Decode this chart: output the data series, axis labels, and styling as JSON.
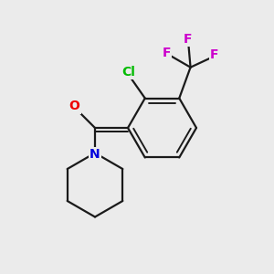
{
  "background_color": "#ebebeb",
  "bond_color": "#1a1a1a",
  "atom_colors": {
    "Cl": "#00bb00",
    "F": "#cc00cc",
    "O": "#ee0000",
    "N": "#0000dd"
  },
  "bond_width": 1.6,
  "figsize": [
    3.0,
    3.0
  ],
  "dpi": 100,
  "xlim": [
    0.0,
    6.0
  ],
  "ylim": [
    0.0,
    6.0
  ],
  "ring_r": 0.75,
  "pip_r": 0.7
}
